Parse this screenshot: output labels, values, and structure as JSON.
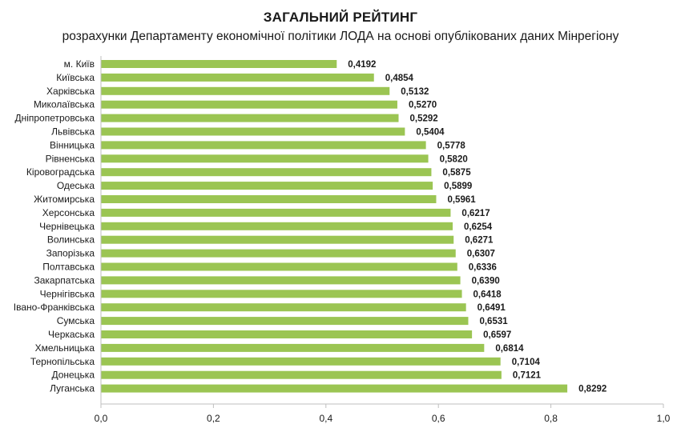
{
  "chart_data": {
    "type": "bar",
    "orientation": "horizontal",
    "title": "ЗАГАЛЬНИЙ РЕЙТИНГ",
    "subtitle": "розрахунки Департаменту економічної політики ЛОДА на основі опублікованих даних Мінрегіону",
    "categories": [
      "м. Київ",
      "Київська",
      "Харківська",
      "Миколаївська",
      "Дніпропетровська",
      "Львівська",
      "Вінницька",
      "Рівненська",
      "Кіровоградська",
      "Одеська",
      "Житомирська",
      "Херсонська",
      "Чернівецька",
      "Волинська",
      "Запорізька",
      "Полтавська",
      "Закарпатська",
      "Чернігівська",
      "Івано-Франківська",
      "Сумська",
      "Черкаська",
      "Хмельницька",
      "Тернопільська",
      "Донецька",
      "Луганська"
    ],
    "values": [
      0.4192,
      0.4854,
      0.5132,
      0.527,
      0.5292,
      0.5404,
      0.5778,
      0.582,
      0.5875,
      0.5899,
      0.5961,
      0.6217,
      0.6254,
      0.6271,
      0.6307,
      0.6336,
      0.639,
      0.6418,
      0.6491,
      0.6531,
      0.6597,
      0.6814,
      0.7104,
      0.7121,
      0.8292
    ],
    "value_labels": [
      "0,4192",
      "0,4854",
      "0,5132",
      "0,5270",
      "0,5292",
      "0,5404",
      "0,5778",
      "0,5820",
      "0,5875",
      "0,5899",
      "0,5961",
      "0,6217",
      "0,6254",
      "0,6271",
      "0,6307",
      "0,6336",
      "0,6390",
      "0,6418",
      "0,6491",
      "0,6531",
      "0,6597",
      "0,6814",
      "0,7104",
      "0,7121",
      "0,8292"
    ],
    "xticks": [
      "0,0",
      "0,2",
      "0,4",
      "0,6",
      "0,8",
      "1,0"
    ],
    "xlim": [
      0,
      1.0
    ],
    "grid": false,
    "bar_color": "#9bc553",
    "axis_color": "#bfbfbf"
  }
}
